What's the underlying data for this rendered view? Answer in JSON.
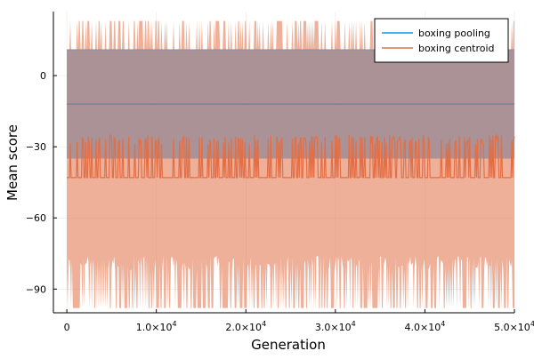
{
  "chart_data": {
    "type": "line",
    "title": "",
    "xlabel": "Generation",
    "ylabel": "Mean score",
    "xlim": [
      -1500,
      50000
    ],
    "ylim": [
      -100,
      27
    ],
    "x_ticks": [
      {
        "value": 0,
        "label": "0"
      },
      {
        "value": 10000,
        "label": "1.0×10",
        "exp": "4"
      },
      {
        "value": 20000,
        "label": "2.0×10",
        "exp": "4"
      },
      {
        "value": 30000,
        "label": "3.0×10",
        "exp": "4"
      },
      {
        "value": 40000,
        "label": "4.0×10",
        "exp": "4"
      },
      {
        "value": 50000,
        "label": "5.0×10",
        "exp": "4"
      }
    ],
    "y_ticks": [
      {
        "value": 0,
        "label": "0"
      },
      {
        "value": -30,
        "label": "−30"
      },
      {
        "value": -60,
        "label": "−60"
      },
      {
        "value": -90,
        "label": "−90"
      }
    ],
    "grid": true,
    "legend_position": "top-right",
    "series": [
      {
        "name": "boxing pooling",
        "color": "#009AFA",
        "mean": -12,
        "band": [
          -35,
          11
        ],
        "x_range": [
          0,
          50000
        ]
      },
      {
        "name": "boxing centroid",
        "color": "#E26F46",
        "baseline_mean": -43,
        "peak_mean": -27,
        "band_upper_base": 11,
        "band_upper_peak": 23,
        "band_lower_base": -76,
        "band_lower_dip": -98,
        "x_range": [
          0,
          50000
        ]
      }
    ],
    "overlap_color": "#A28F97"
  }
}
